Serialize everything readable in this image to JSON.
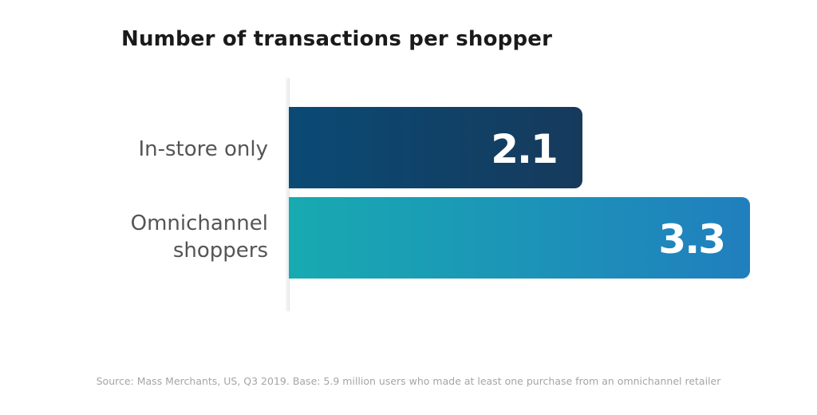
{
  "chart_data": {
    "type": "bar",
    "orientation": "horizontal",
    "title": "Number of transactions per shopper",
    "categories": [
      "In-store only",
      "Omnichannel\nshoppers"
    ],
    "values": [
      2.1,
      3.3
    ],
    "value_labels": [
      "2.1",
      "3.3"
    ],
    "xlabel": "",
    "ylabel": "",
    "grid": false,
    "legend": "none",
    "bar_colors": [
      {
        "from": "#0a4a75",
        "to": "#163a5c"
      },
      {
        "from": "#18aab1",
        "to": "#207fbe"
      }
    ]
  },
  "footer": {
    "source": "Source: Mass Merchants, US, Q3 2019. Base: 5.9 million users who made at least one purchase from an omnichannel retailer"
  }
}
